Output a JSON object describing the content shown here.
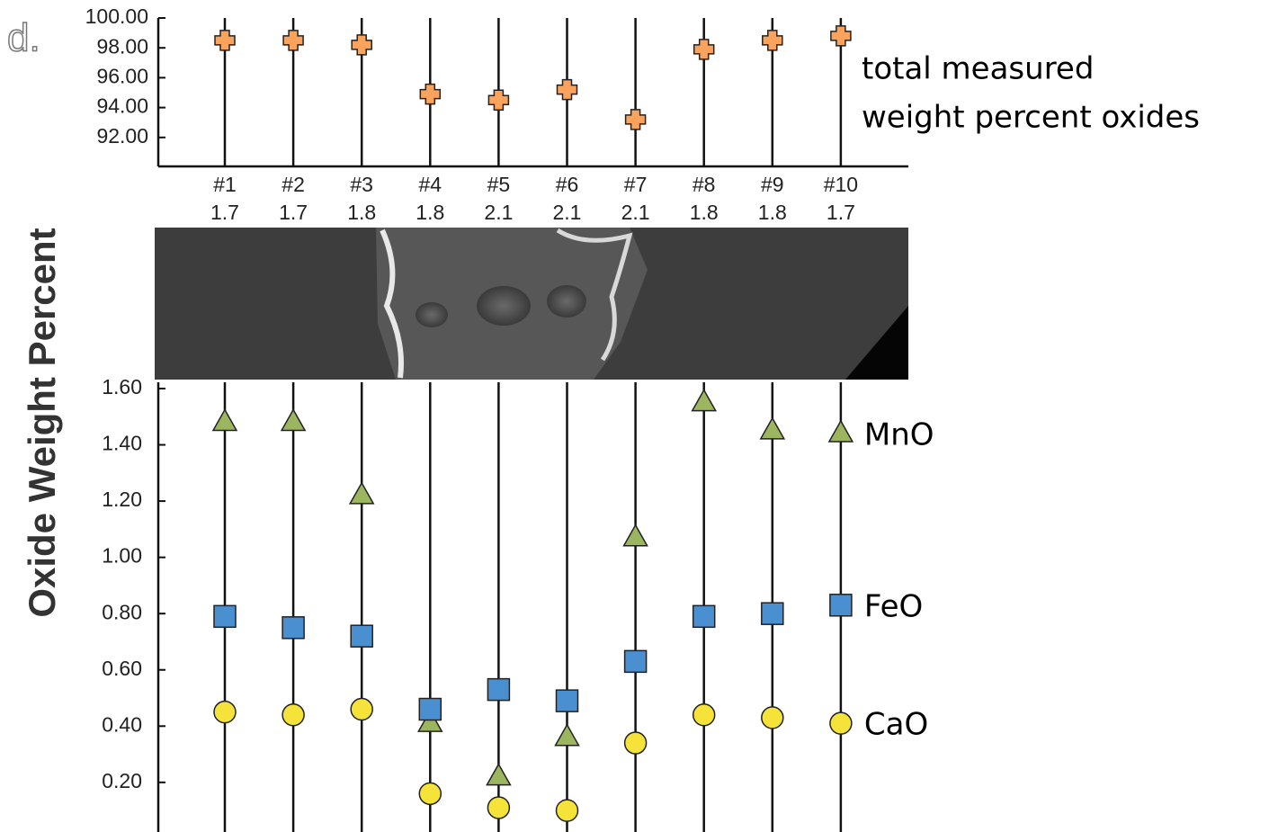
{
  "chart_data": [
    {
      "type": "scatter",
      "panel_label": "d.",
      "annotation": [
        "total measured",
        "weight percent oxides"
      ],
      "categories": [
        "#1",
        "#2",
        "#3",
        "#4",
        "#5",
        "#6",
        "#7",
        "#8",
        "#9",
        "#10"
      ],
      "sublabels": [
        1.7,
        1.7,
        1.8,
        1.8,
        2.1,
        2.1,
        2.1,
        1.8,
        1.8,
        1.7
      ],
      "ylim": [
        90,
        100
      ],
      "yticks": [
        {
          "value": 100,
          "label": "100.00"
        },
        {
          "value": 98,
          "label": "98.00"
        },
        {
          "value": 96,
          "label": "96.00"
        },
        {
          "value": 94,
          "label": "94.00"
        },
        {
          "value": 92,
          "label": "92.00"
        }
      ],
      "series": [
        {
          "color": "#f9a35c",
          "marker": "plus",
          "values": [
            98.5,
            98.5,
            98.2,
            94.9,
            94.5,
            95.2,
            93.2,
            97.9,
            98.5,
            98.8
          ]
        }
      ]
    },
    {
      "type": "scatter",
      "y_label": "Oxide Weight Percent",
      "ylim": [
        0.03,
        1.6
      ],
      "yticks": [
        {
          "value": 1.6,
          "label": "1.60"
        },
        {
          "value": 1.4,
          "label": "1.40"
        },
        {
          "value": 1.2,
          "label": "1.20"
        },
        {
          "value": 1,
          "label": "1.00"
        },
        {
          "value": 0.8,
          "label": "0.80"
        },
        {
          "value": 0.6,
          "label": "0.60"
        },
        {
          "value": 0.4,
          "label": "0.40"
        },
        {
          "value": 0.2,
          "label": "0.20"
        }
      ],
      "series": [
        {
          "name": "MnO",
          "color": "#9bb65e",
          "marker": "triangle",
          "values": [
            1.48,
            1.48,
            1.22,
            0.41,
            0.22,
            0.36,
            1.07,
            1.55,
            1.45,
            1.44
          ]
        },
        {
          "name": "FeO",
          "color": "#4a8fd0",
          "marker": "square",
          "values": [
            0.79,
            0.75,
            0.72,
            0.46,
            0.53,
            0.49,
            0.63,
            0.79,
            0.8,
            0.83
          ]
        },
        {
          "name": "CaO",
          "color": "#f5e33a",
          "marker": "circle",
          "values": [
            0.45,
            0.44,
            0.46,
            0.16,
            0.11,
            0.1,
            0.34,
            0.44,
            0.43,
            0.41
          ]
        }
      ]
    }
  ]
}
